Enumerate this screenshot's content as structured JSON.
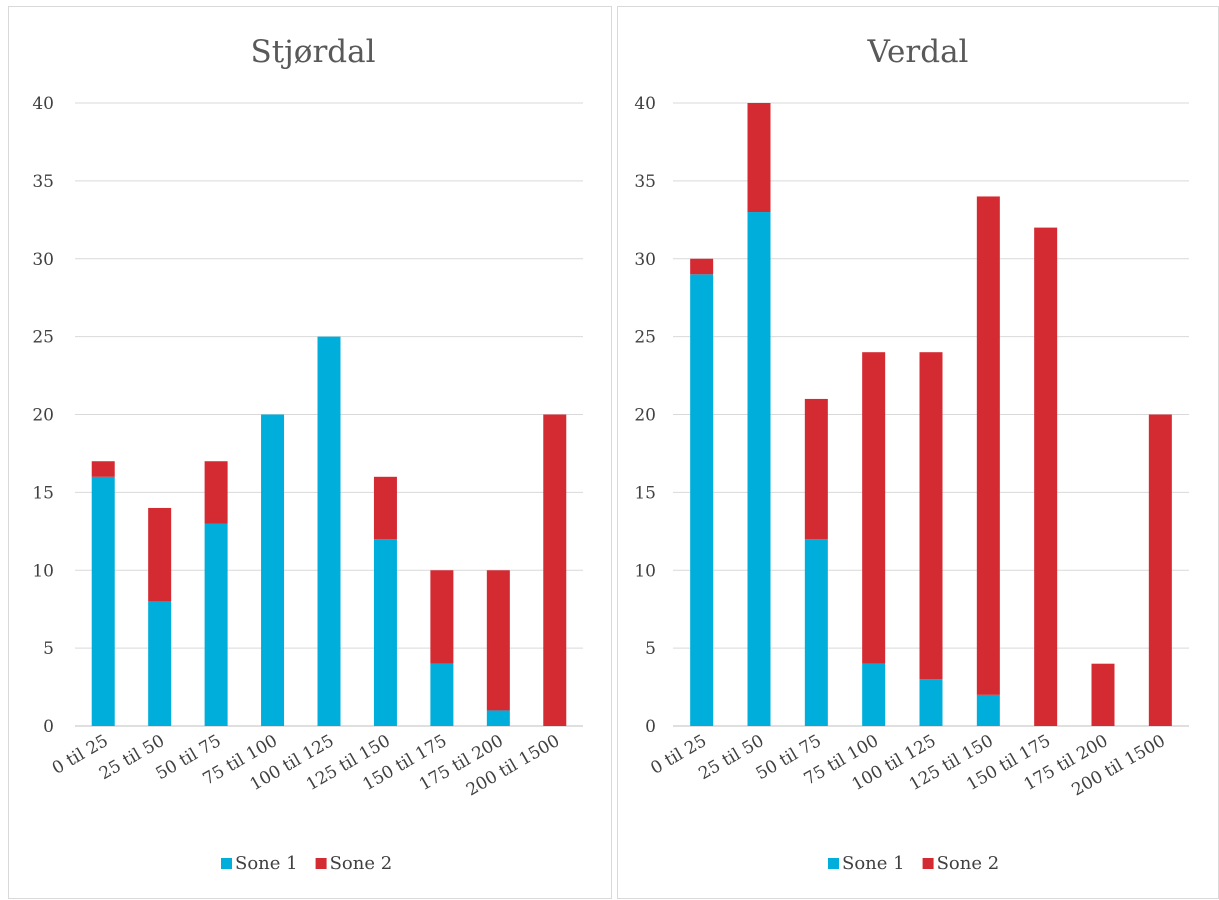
{
  "colors": {
    "sone1": "#00AEDB",
    "sone2": "#D42A32",
    "grid": "#d9d9d9",
    "axis": "#bfbfbf"
  },
  "chart_data": [
    {
      "type": "bar",
      "stacked": true,
      "title": "Stjørdal",
      "categories": [
        "0 til 25",
        "25 til 50",
        "50 til 75",
        "75 til 100",
        "100 til 125",
        "125 til 150",
        "150 til 175",
        "175 til 200",
        "200 til 1500"
      ],
      "series": [
        {
          "name": "Sone 1",
          "values": [
            16,
            8,
            13,
            20,
            25,
            12,
            4,
            1,
            0
          ]
        },
        {
          "name": "Sone 2",
          "values": [
            1,
            6,
            4,
            0,
            0,
            4,
            6,
            9,
            20
          ]
        }
      ],
      "ylim": [
        0,
        40
      ],
      "yticks": [
        0,
        5,
        10,
        15,
        20,
        25,
        30,
        35,
        40
      ],
      "grid": true,
      "legend": "bottom"
    },
    {
      "type": "bar",
      "stacked": true,
      "title": "Verdal",
      "categories": [
        "0 til 25",
        "25 til 50",
        "50 til 75",
        "75 til 100",
        "100 til 125",
        "125 til 150",
        "150 til 175",
        "175 til 200",
        "200 til 1500"
      ],
      "series": [
        {
          "name": "Sone 1",
          "values": [
            29,
            33,
            12,
            4,
            3,
            2,
            0,
            0,
            0
          ]
        },
        {
          "name": "Sone 2",
          "values": [
            1,
            7,
            9,
            20,
            21,
            32,
            32,
            4,
            20
          ]
        }
      ],
      "ylim": [
        0,
        40
      ],
      "yticks": [
        0,
        5,
        10,
        15,
        20,
        25,
        30,
        35,
        40
      ],
      "grid": true,
      "legend": "bottom"
    }
  ]
}
